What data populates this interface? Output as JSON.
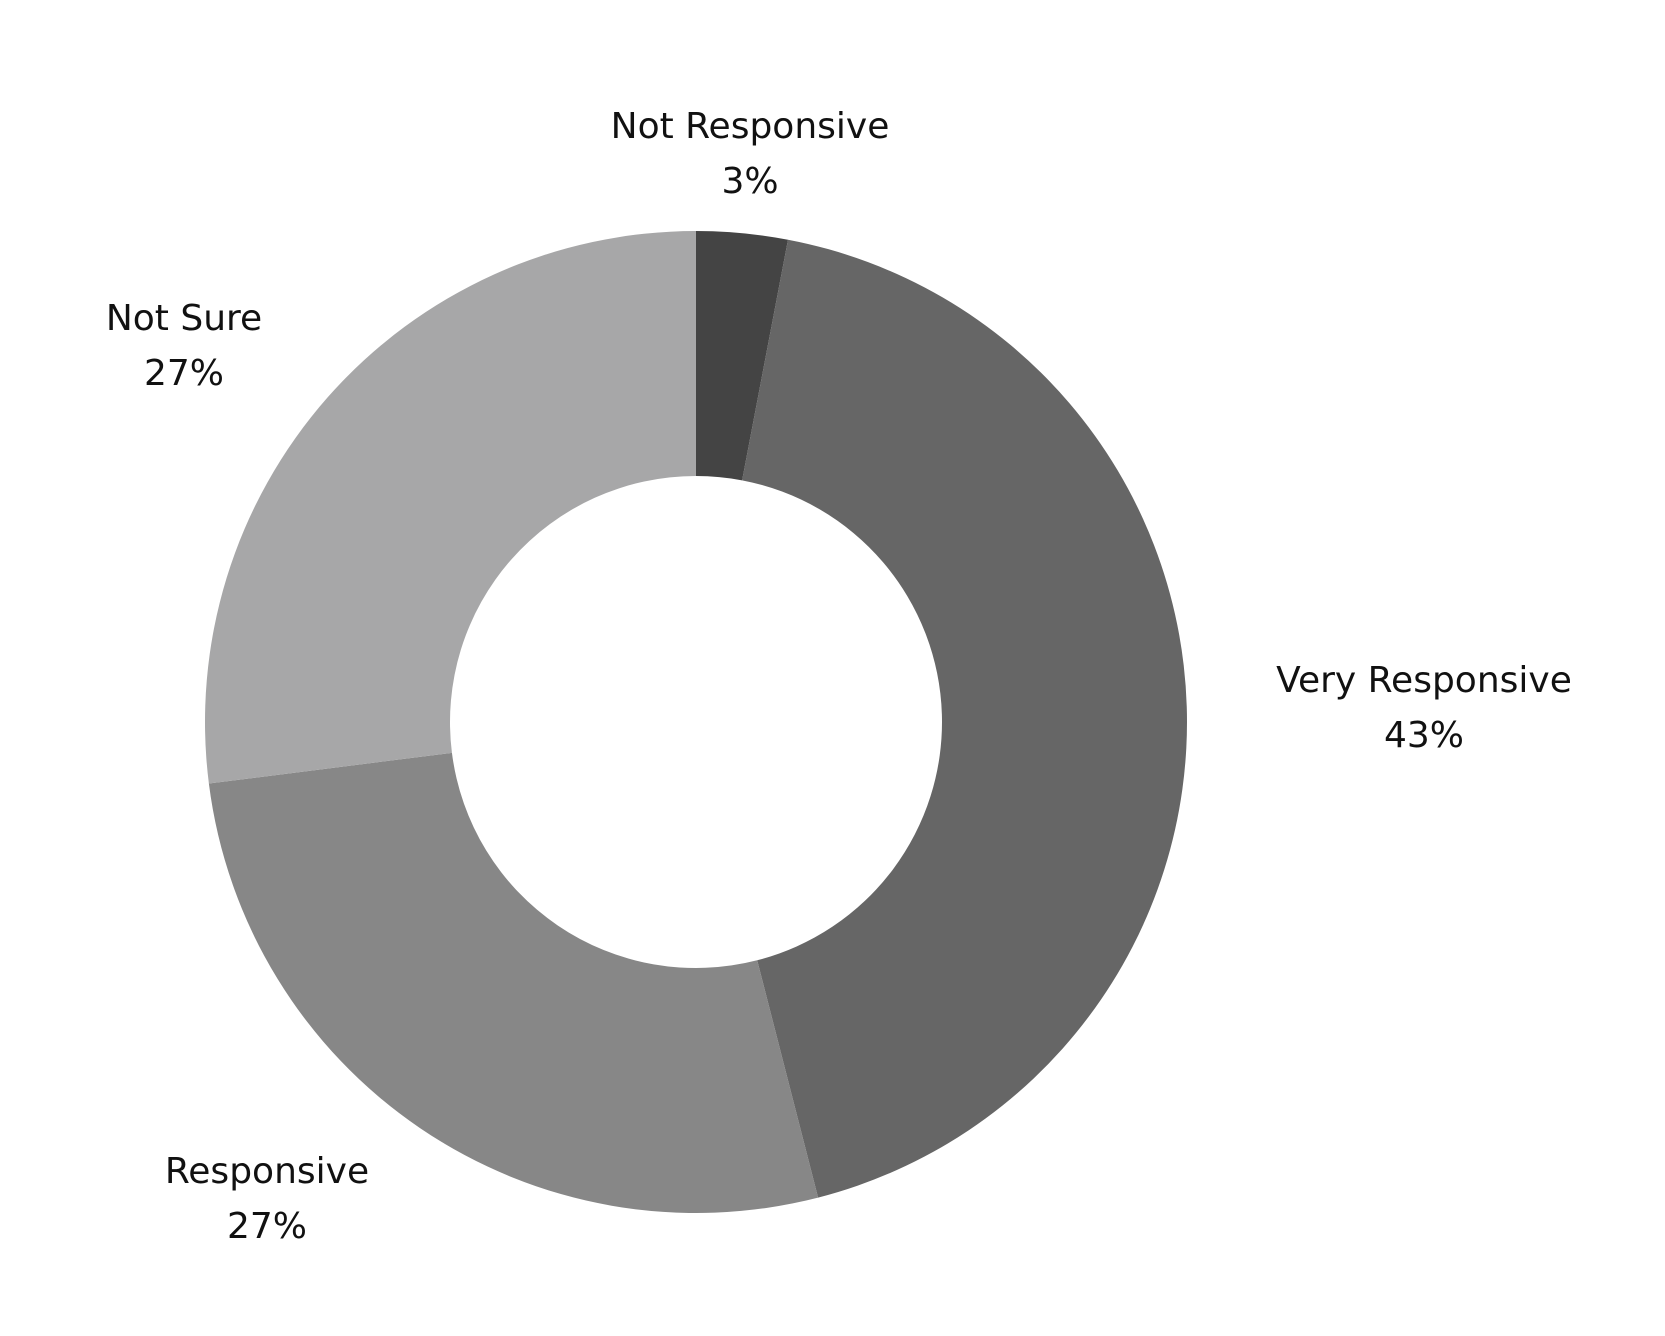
{
  "chart_data": {
    "type": "pie",
    "donut": true,
    "slices": [
      {
        "label": "Not Responsive",
        "pct_label": "3%",
        "value": 3,
        "color": "#444444"
      },
      {
        "label": "Very Responsive",
        "pct_label": "43%",
        "value": 43,
        "color": "#666666"
      },
      {
        "label": "Responsive",
        "pct_label": "27%",
        "value": 27,
        "color": "#878787"
      },
      {
        "label": "Not Sure",
        "pct_label": "27%",
        "value": 27,
        "color": "#a7a7a8"
      }
    ],
    "title": "",
    "legend": "none"
  }
}
